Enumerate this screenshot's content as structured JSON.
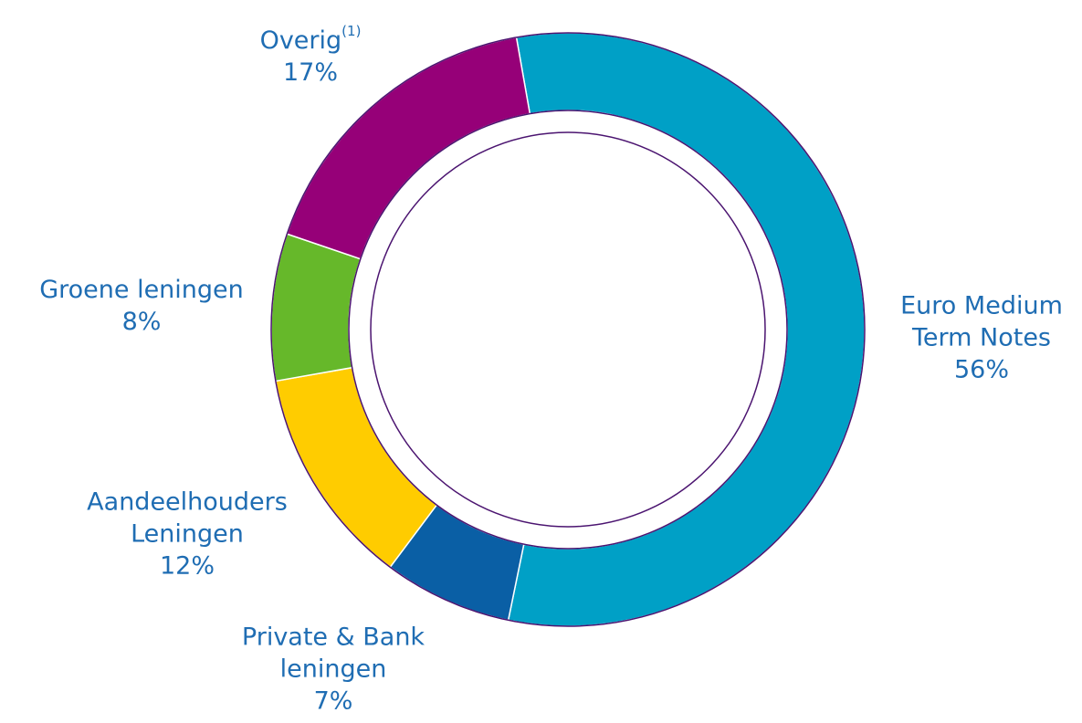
{
  "chart_data": {
    "type": "donut",
    "categories": [
      "Euro Medium Term Notes",
      "Private & Bank leningen",
      "Aandeelhouders Leningen",
      "Groene leningen",
      "Overig"
    ],
    "values": [
      56,
      7,
      12,
      8,
      17
    ],
    "value_labels": [
      "56%",
      "7%",
      "12%",
      "8%",
      "17%"
    ],
    "label_notes": [
      null,
      null,
      null,
      null,
      "(1)"
    ],
    "colors": [
      "#00a0c6",
      "#0a5fa5",
      "#ffcc00",
      "#66b82a",
      "#960078"
    ]
  }
}
